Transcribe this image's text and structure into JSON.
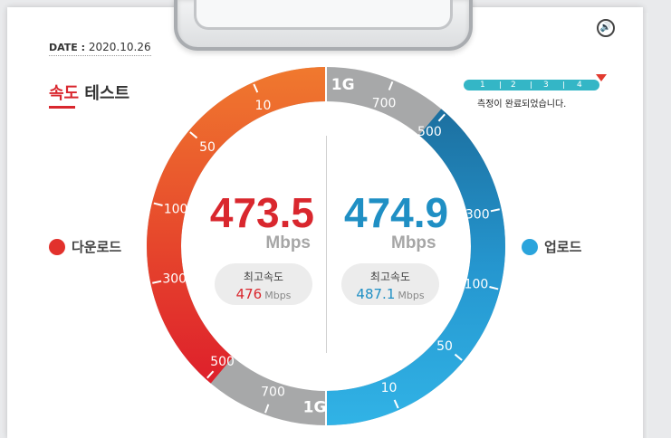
{
  "date": {
    "label": "DATE :",
    "value": "2020.10.26"
  },
  "title": {
    "accent": "속도",
    "rest": " 테스트"
  },
  "progress": {
    "steps": [
      "1",
      "2",
      "3",
      "4"
    ],
    "status": "측정이 완료되었습니다.",
    "value": 1.0
  },
  "download": {
    "label": "다운로드",
    "speed": "473.5",
    "unit": "Mbps",
    "max_label": "최고속도",
    "max_value": "476",
    "max_unit": "Mbps",
    "scale": [
      "10",
      "50",
      "100",
      "300",
      "500",
      "700",
      "1G"
    ]
  },
  "upload": {
    "label": "업로드",
    "speed": "474.9",
    "unit": "Mbps",
    "max_label": "최고속도",
    "max_value": "487.1",
    "max_unit": "Mbps",
    "scale": [
      "1G",
      "700",
      "500",
      "300",
      "100",
      "50",
      "10"
    ]
  },
  "colors": {
    "download": "#e2312c",
    "download_light": "#f0792e",
    "upload": "#1e87c0",
    "upload_light": "#31b3e6",
    "track": "#a7a8a9"
  }
}
